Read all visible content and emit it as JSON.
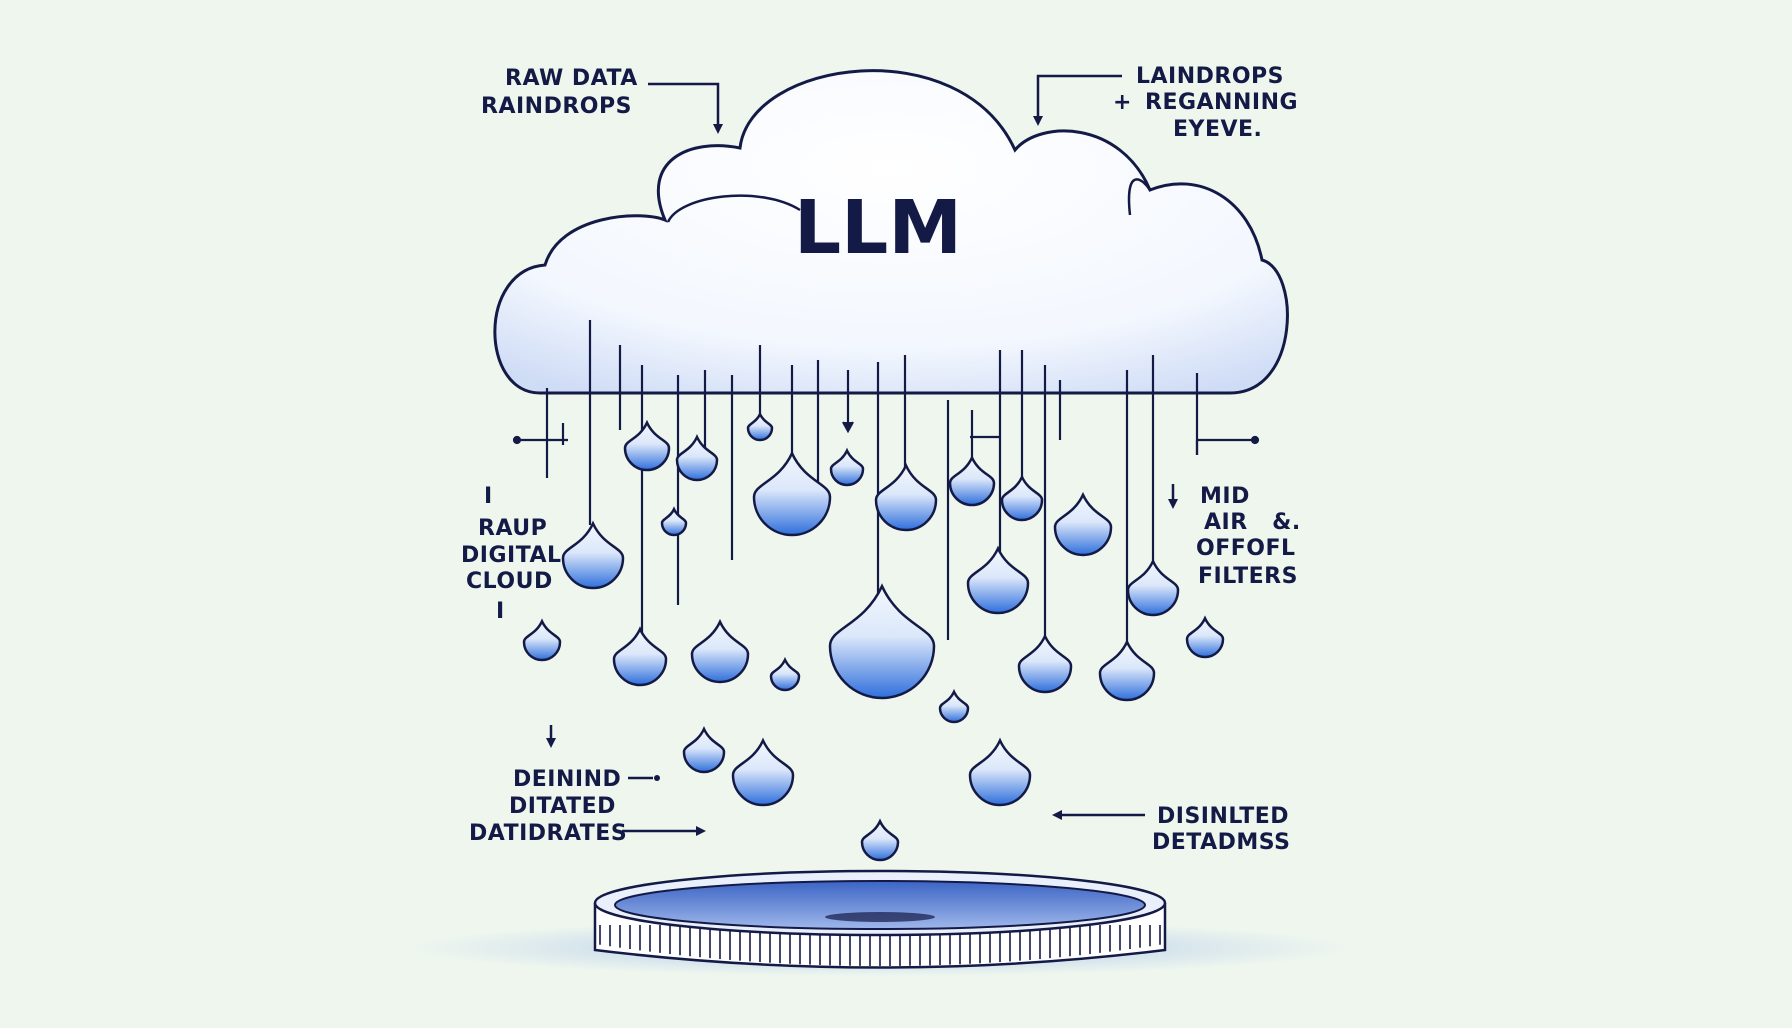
{
  "title": "LLM",
  "labels": {
    "top_left": [
      "RAW DATA",
      "RAINDROPS"
    ],
    "top_right": [
      "LAINDROPS",
      "REGANNING",
      "EYEVE."
    ],
    "top_right_marker": "+",
    "mid_left": [
      "RAUP",
      "DIGITAL",
      "CLOUD"
    ],
    "mid_left_ticks": [
      "I",
      "I"
    ],
    "mid_right": [
      "MID",
      "AIR   &.",
      "OFFOFL",
      "FILTERS"
    ],
    "bottom_left": [
      "DEININD",
      "DITATED",
      "DATIDRATES"
    ],
    "bottom_right": [
      "DISINLTED",
      "DETADMSS"
    ]
  },
  "colors": {
    "background": "#eef6ee",
    "ink": "#141a46",
    "drop_light": "#e8f0fb",
    "drop_dark": "#2f6fdc",
    "cloud_fill": "#ffffff",
    "cloud_shade": "#cfdcf6"
  }
}
